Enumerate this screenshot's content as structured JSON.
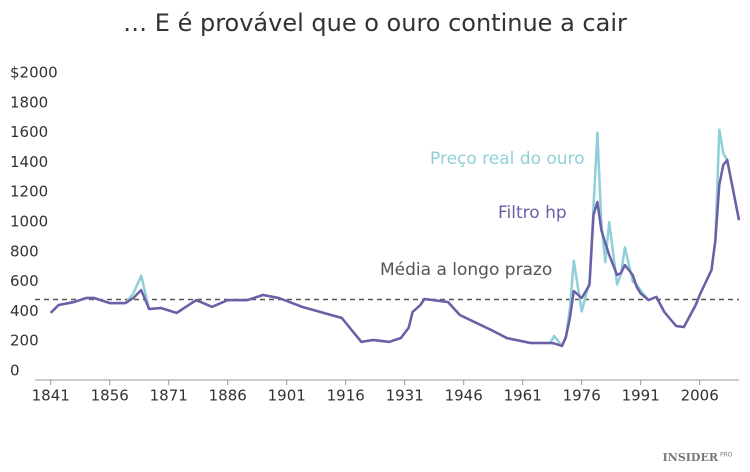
{
  "chart_data": {
    "type": "line",
    "title": "… E é provável que o ouro continue a cair",
    "x": [
      1841,
      1843,
      1847,
      1850,
      1852,
      1856,
      1860,
      1862,
      1864,
      1866,
      1869,
      1873,
      1878,
      1882,
      1886,
      1891,
      1895,
      1899,
      1905,
      1915,
      1920,
      1923,
      1927,
      1930,
      1932,
      1933,
      1935,
      1936,
      1940,
      1942,
      1945,
      1953,
      1957,
      1963,
      1968,
      1969,
      1971,
      1972,
      1973,
      1974,
      1976,
      1978,
      1979,
      1980,
      1981,
      1982,
      1983,
      1985,
      1986,
      1987,
      1989,
      1990,
      1991,
      1993,
      1995,
      1997,
      2000,
      2002,
      2005,
      2006,
      2009,
      2010,
      2011,
      2012,
      2013,
      2016
    ],
    "series": [
      {
        "name": "Preço real do ouro",
        "color": "#8fd0d8",
        "values": [
          390,
          443,
          463,
          490,
          490,
          456,
          456,
          520,
          640,
          416,
          423,
          390,
          476,
          430,
          476,
          476,
          510,
          490,
          430,
          356,
          195,
          208,
          195,
          221,
          289,
          396,
          443,
          483,
          470,
          463,
          376,
          275,
          221,
          188,
          188,
          235,
          168,
          228,
          420,
          740,
          400,
          600,
          1100,
          1600,
          1000,
          730,
          1000,
          580,
          650,
          830,
          600,
          580,
          540,
          476,
          497,
          396,
          302,
          295,
          443,
          510,
          678,
          879,
          1620,
          1460,
          1416,
          1013
        ]
      },
      {
        "name": "Filtro hp",
        "color": "#6b5fa5",
        "values": [
          390,
          443,
          463,
          490,
          490,
          456,
          456,
          490,
          543,
          416,
          423,
          390,
          476,
          430,
          476,
          476,
          510,
          490,
          430,
          356,
          195,
          208,
          195,
          221,
          289,
          396,
          443,
          483,
          470,
          463,
          376,
          275,
          221,
          188,
          188,
          185,
          168,
          228,
          356,
          537,
          490,
          577,
          1047,
          1134,
          946,
          860,
          779,
          644,
          658,
          711,
          644,
          564,
          520,
          476,
          497,
          396,
          302,
          295,
          443,
          510,
          678,
          879,
          1250,
          1383,
          1416,
          1013
        ]
      }
    ],
    "reference_line": {
      "label": "Média a longo prazo",
      "value": 480,
      "color": "#555555"
    },
    "xlim": [
      1837,
      2016
    ],
    "xticks": [
      1841,
      1856,
      1871,
      1886,
      1901,
      1916,
      1931,
      1946,
      1961,
      1976,
      1991,
      2006
    ],
    "ylim": [
      0,
      2000
    ],
    "yticks": [
      0,
      200,
      400,
      600,
      800,
      1000,
      1200,
      1400,
      1600,
      1800,
      {
        "value": 2000,
        "label": "$2000"
      }
    ],
    "brand": "INSIDER",
    "brand_sub": "PRO"
  }
}
